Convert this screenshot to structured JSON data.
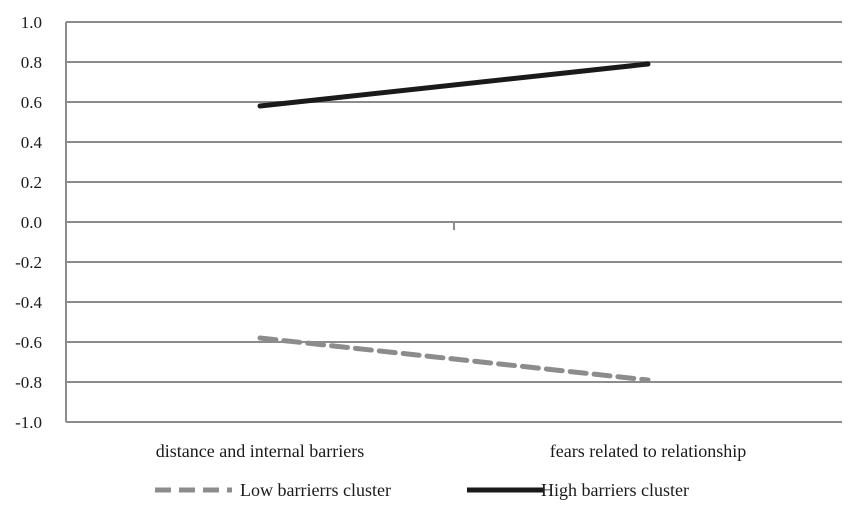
{
  "chart_data": {
    "type": "line",
    "categories": [
      "distance and internal barriers",
      "fears related to relationship"
    ],
    "series": [
      {
        "name": "Low barrierrs cluster",
        "values": [
          -0.58,
          -0.79
        ],
        "color": "#8c8c8c",
        "style": "dashed"
      },
      {
        "name": "High barriers cluster",
        "values": [
          0.58,
          0.79
        ],
        "color": "#1a1a1a",
        "style": "solid"
      }
    ],
    "ylim": [
      -1.0,
      1.0
    ],
    "yticks": [
      "1.0",
      "0.8",
      "0.6",
      "0.4",
      "0.2",
      "0.0",
      "-0.2",
      "-0.4",
      "-0.6",
      "-0.8",
      "-1.0"
    ],
    "ytick_values": [
      1.0,
      0.8,
      0.6,
      0.4,
      0.2,
      0.0,
      -0.2,
      -0.4,
      -0.6,
      -0.8,
      -1.0
    ],
    "grid": true,
    "gridline_color": "#8c8c8c",
    "legend_position": "bottom"
  }
}
